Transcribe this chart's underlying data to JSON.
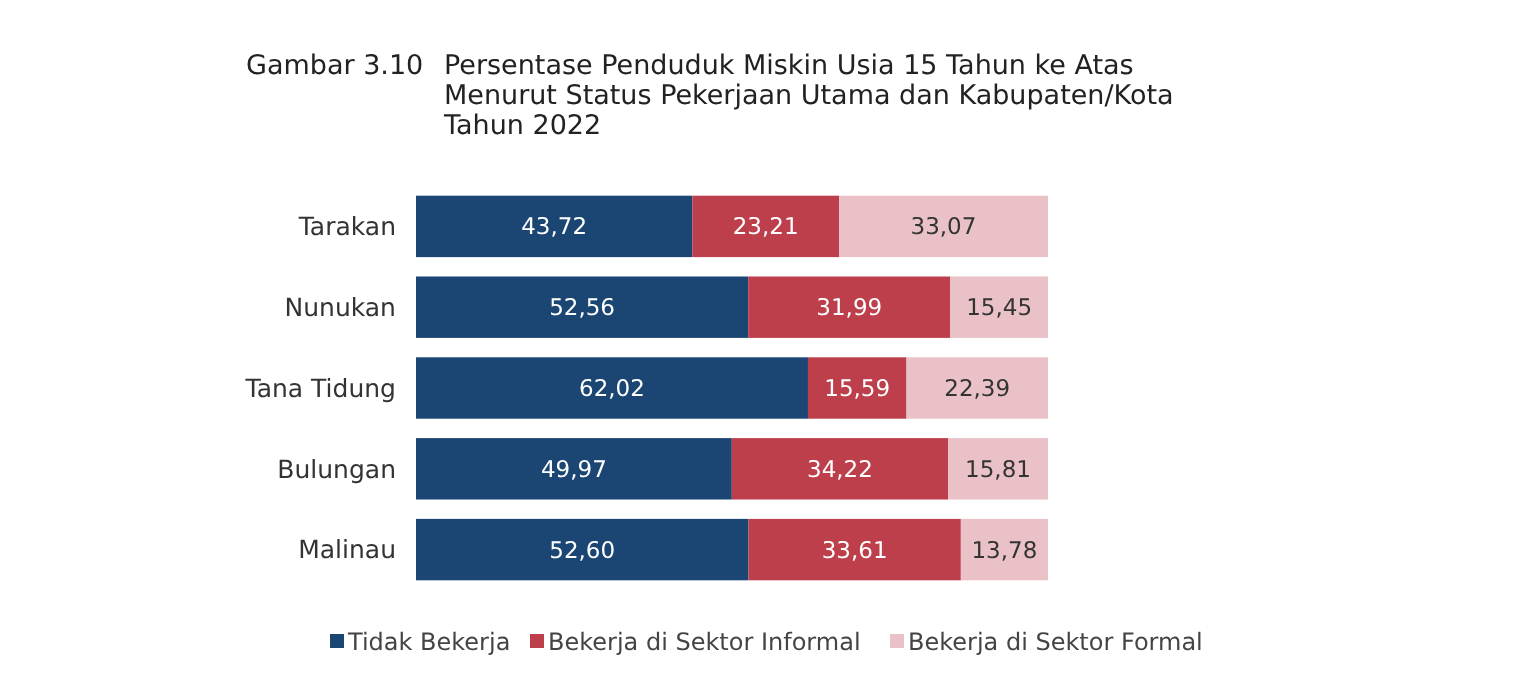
{
  "chart_data": {
    "type": "bar",
    "orientation": "horizontal",
    "stacked": true,
    "title": "Gambar 3.10 Persentase Penduduk Miskin Usia 15 Tahun ke Atas\nMenurut Status Pekerjaan Utama dan Kabupaten/Kota\nTahun 2022",
    "categories": [
      "Tarakan",
      "Nunukan",
      "Tana Tidung",
      "Bulungan",
      "Malinau"
    ],
    "series": [
      {
        "name": "Tidak Bekerja",
        "color": "#1b4673",
        "values": [
          43.72,
          52.56,
          62.02,
          49.97,
          52.6
        ],
        "value_labels": [
          "43,72",
          "52,56",
          "62,02",
          "49,97",
          "52,60"
        ]
      },
      {
        "name": "Bekerja di Sektor Informal",
        "color": "#be3f4c",
        "values": [
          23.21,
          31.99,
          15.59,
          34.22,
          33.61
        ],
        "value_labels": [
          "23,21",
          "31,99",
          "15,59",
          "34,22",
          "33,61"
        ]
      },
      {
        "name": "Bekerja di Sektor Formal",
        "color": "#e9c1c6",
        "values": [
          33.07,
          15.45,
          22.39,
          15.81,
          13.78
        ],
        "value_labels": [
          "33,07",
          "15,45",
          "22,39",
          "15,81",
          "13,78"
        ]
      }
    ],
    "tick_labels": "y",
    "legend": "bottom"
  }
}
